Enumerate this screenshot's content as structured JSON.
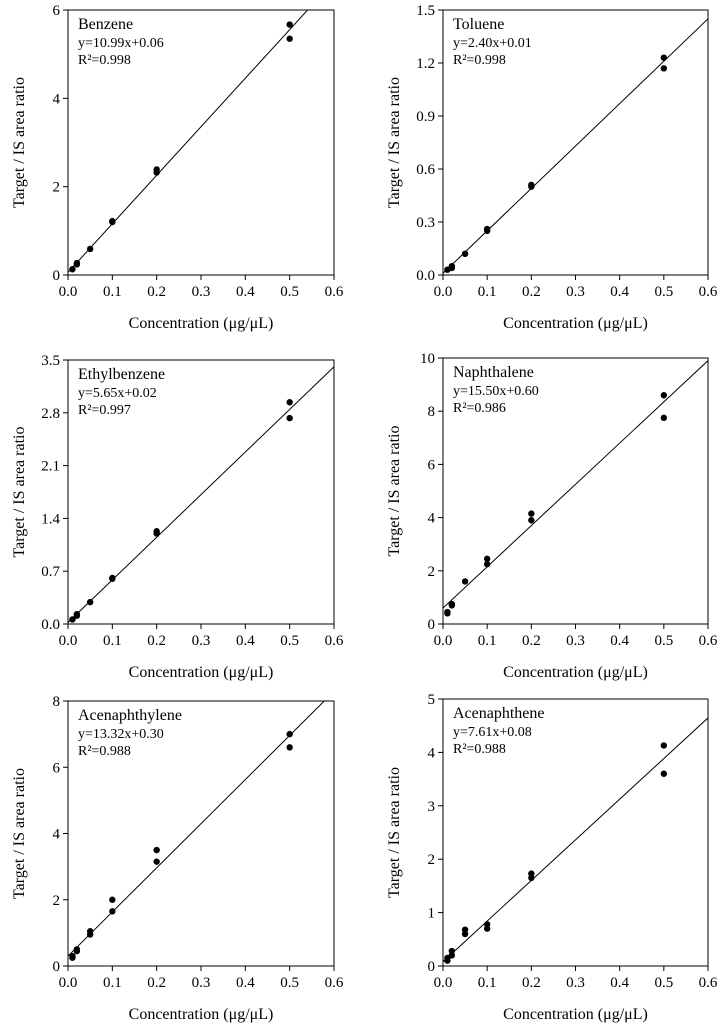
{
  "figure": {
    "common": {
      "ylabel": "Target / IS area ratio",
      "xlabel": "Concentration (μg/μL)"
    }
  },
  "chart_data": [
    {
      "type": "scatter",
      "title": "Benzene",
      "equation": "y=10.99x+0.06",
      "r2_label": "R²=0.998",
      "fit": {
        "slope": 10.99,
        "intercept": 0.06
      },
      "xlabel": "Concentration (μg/μL)",
      "ylabel": "Target / IS area ratio",
      "xlim": [
        0,
        0.6
      ],
      "ylim": [
        0,
        6
      ],
      "xticks": [
        "0.0",
        "0.1",
        "0.2",
        "0.3",
        "0.4",
        "0.5",
        "0.6"
      ],
      "yticks": [
        "0",
        "2",
        "4",
        "6"
      ],
      "grid": false,
      "points": [
        [
          0.01,
          0.13
        ],
        [
          0.02,
          0.27
        ],
        [
          0.02,
          0.24
        ],
        [
          0.05,
          0.59
        ],
        [
          0.1,
          1.2
        ],
        [
          0.1,
          1.22
        ],
        [
          0.2,
          2.32
        ],
        [
          0.2,
          2.39
        ],
        [
          0.5,
          5.35
        ],
        [
          0.5,
          5.67
        ]
      ]
    },
    {
      "type": "scatter",
      "title": "Toluene",
      "equation": "y=2.40x+0.01",
      "r2_label": "R²=0.998",
      "fit": {
        "slope": 2.4,
        "intercept": 0.01
      },
      "xlabel": "Concentration (μg/μL)",
      "ylabel": "Target / IS area ratio",
      "xlim": [
        0,
        0.6
      ],
      "ylim": [
        0,
        1.5
      ],
      "xticks": [
        "0.0",
        "0.1",
        "0.2",
        "0.3",
        "0.4",
        "0.5",
        "0.6"
      ],
      "yticks": [
        "0.0",
        "0.3",
        "0.6",
        "0.9",
        "1.2",
        "1.5"
      ],
      "grid": false,
      "points": [
        [
          0.01,
          0.03
        ],
        [
          0.02,
          0.05
        ],
        [
          0.02,
          0.04
        ],
        [
          0.05,
          0.12
        ],
        [
          0.1,
          0.25
        ],
        [
          0.1,
          0.26
        ],
        [
          0.2,
          0.5
        ],
        [
          0.2,
          0.51
        ],
        [
          0.5,
          1.17
        ],
        [
          0.5,
          1.23
        ]
      ]
    },
    {
      "type": "scatter",
      "title": "Ethylbenzene",
      "equation": "y=5.65x+0.02",
      "r2_label": "R²=0.997",
      "fit": {
        "slope": 5.65,
        "intercept": 0.02
      },
      "xlabel": "Concentration (μg/μL)",
      "ylabel": "Target / IS area ratio",
      "xlim": [
        0,
        0.6
      ],
      "ylim": [
        0,
        3.5
      ],
      "xticks": [
        "0.0",
        "0.1",
        "0.2",
        "0.3",
        "0.4",
        "0.5",
        "0.6"
      ],
      "yticks": [
        "0.0",
        "0.7",
        "1.4",
        "2.1",
        "2.8",
        "3.5"
      ],
      "grid": false,
      "points": [
        [
          0.01,
          0.06
        ],
        [
          0.02,
          0.13
        ],
        [
          0.02,
          0.11
        ],
        [
          0.05,
          0.29
        ],
        [
          0.1,
          0.6
        ],
        [
          0.1,
          0.61
        ],
        [
          0.2,
          1.2
        ],
        [
          0.2,
          1.23
        ],
        [
          0.5,
          2.73
        ],
        [
          0.5,
          2.94
        ]
      ]
    },
    {
      "type": "scatter",
      "title": "Naphthalene",
      "equation": "y=15.50x+0.60",
      "r2_label": "R²=0.986",
      "fit": {
        "slope": 15.5,
        "intercept": 0.6
      },
      "xlabel": "Concentration (μg/μL)",
      "ylabel": "Target / IS area ratio",
      "xlim": [
        0,
        0.6
      ],
      "ylim": [
        0,
        10
      ],
      "xticks": [
        "0.0",
        "0.1",
        "0.2",
        "0.3",
        "0.4",
        "0.5",
        "0.6"
      ],
      "yticks": [
        "0",
        "2",
        "4",
        "6",
        "8",
        "10"
      ],
      "grid": false,
      "points": [
        [
          0.01,
          0.4
        ],
        [
          0.01,
          0.45
        ],
        [
          0.02,
          0.7
        ],
        [
          0.02,
          0.75
        ],
        [
          0.05,
          1.6
        ],
        [
          0.1,
          2.25
        ],
        [
          0.1,
          2.45
        ],
        [
          0.2,
          3.9
        ],
        [
          0.2,
          4.15
        ],
        [
          0.5,
          7.75
        ],
        [
          0.5,
          8.6
        ]
      ]
    },
    {
      "type": "scatter",
      "title": "Acenaphthylene",
      "equation": "y=13.32x+0.30",
      "r2_label": "R²=0.988",
      "fit": {
        "slope": 13.32,
        "intercept": 0.3
      },
      "xlabel": "Concentration (μg/μL)",
      "ylabel": "Target / IS area ratio",
      "xlim": [
        0,
        0.6
      ],
      "ylim": [
        0,
        8
      ],
      "xticks": [
        "0.0",
        "0.1",
        "0.2",
        "0.3",
        "0.4",
        "0.5",
        "0.6"
      ],
      "yticks": [
        "0",
        "2",
        "4",
        "6",
        "8"
      ],
      "grid": false,
      "points": [
        [
          0.01,
          0.25
        ],
        [
          0.01,
          0.3
        ],
        [
          0.02,
          0.45
        ],
        [
          0.02,
          0.5
        ],
        [
          0.05,
          0.95
        ],
        [
          0.05,
          1.05
        ],
        [
          0.1,
          1.65
        ],
        [
          0.1,
          2.0
        ],
        [
          0.2,
          3.15
        ],
        [
          0.2,
          3.5
        ],
        [
          0.5,
          6.6
        ],
        [
          0.5,
          7.0
        ]
      ]
    },
    {
      "type": "scatter",
      "title": "Acenaphthene",
      "equation": "y=7.61x+0.08",
      "r2_label": "R²=0.988",
      "fit": {
        "slope": 7.61,
        "intercept": 0.08
      },
      "xlabel": "Concentration (μg/μL)",
      "ylabel": "Target / IS area ratio",
      "xlim": [
        0,
        0.6
      ],
      "ylim": [
        0,
        5
      ],
      "xticks": [
        "0.0",
        "0.1",
        "0.2",
        "0.3",
        "0.4",
        "0.5",
        "0.6"
      ],
      "yticks": [
        "0",
        "1",
        "2",
        "3",
        "4",
        "5"
      ],
      "grid": false,
      "points": [
        [
          0.01,
          0.1
        ],
        [
          0.01,
          0.15
        ],
        [
          0.02,
          0.2
        ],
        [
          0.02,
          0.28
        ],
        [
          0.05,
          0.6
        ],
        [
          0.05,
          0.68
        ],
        [
          0.1,
          0.7
        ],
        [
          0.1,
          0.78
        ],
        [
          0.2,
          1.65
        ],
        [
          0.2,
          1.73
        ],
        [
          0.5,
          3.6
        ],
        [
          0.5,
          4.13
        ]
      ]
    }
  ]
}
